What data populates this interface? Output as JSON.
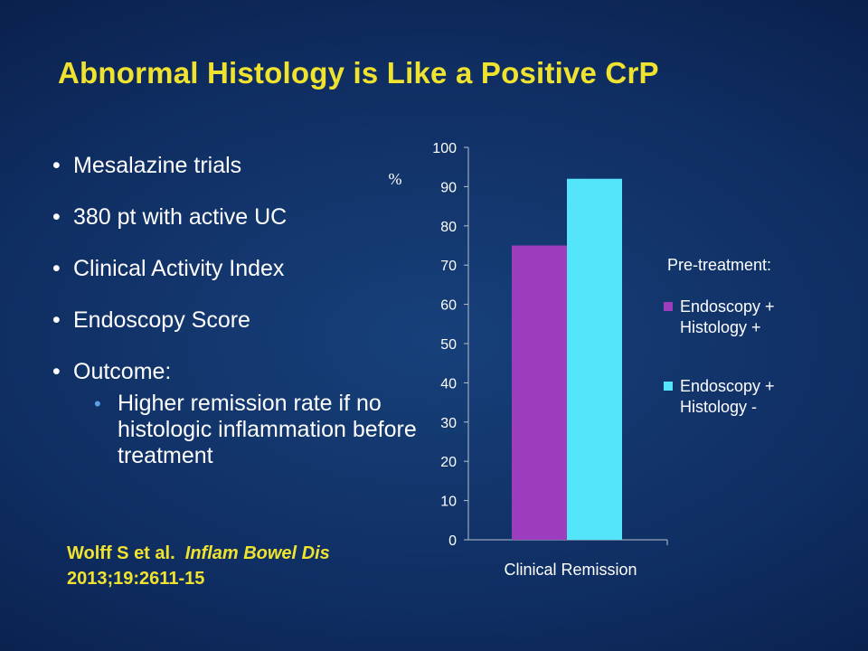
{
  "slide": {
    "title": "Abnormal Histology is Like a Positive CrP",
    "bullets": [
      "Mesalazine trials",
      "380 pt with active UC",
      "Clinical Activity Index",
      "Endoscopy Score",
      "Outcome:"
    ],
    "sub_bullet": "Higher remission rate if no histologic inflammation before treatment",
    "citation": {
      "authors": "Wolff S et al.",
      "journal": "Inflam Bowel Dis",
      "reference": "2013;19:2611-15"
    }
  },
  "chart_data": {
    "type": "bar",
    "categories": [
      "Clinical Remission"
    ],
    "series": [
      {
        "name": "Endoscopy + Histology +",
        "values": [
          75
        ],
        "color": "#9b3dbd"
      },
      {
        "name": "Endoscopy + Histology -",
        "values": [
          92
        ],
        "color": "#55e5fb"
      }
    ],
    "ylabel": "%",
    "ylim": [
      0,
      100
    ],
    "yticks": [
      0,
      10,
      20,
      30,
      40,
      50,
      60,
      70,
      80,
      90,
      100
    ],
    "legend_title": "Pre-treatment:",
    "legend_position": "right",
    "grid": false
  }
}
